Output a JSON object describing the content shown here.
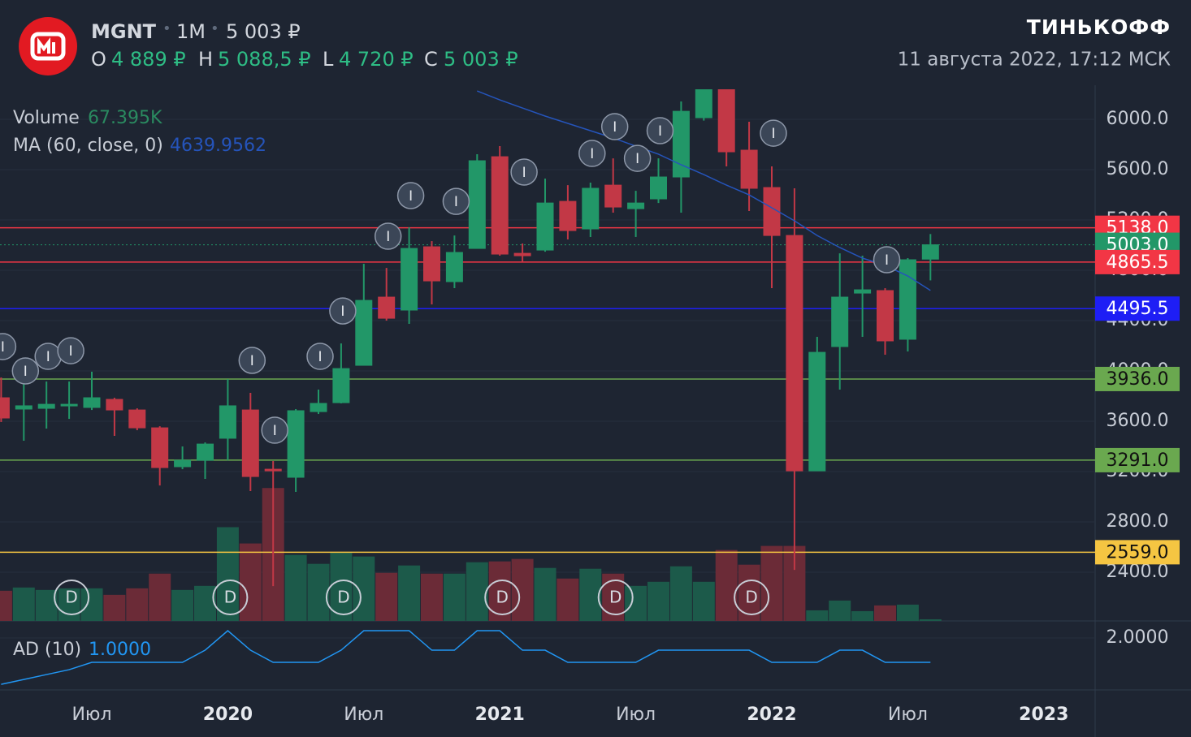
{
  "header": {
    "ticker": "MGNT",
    "interval": "1M",
    "price": "5 003 ₽",
    "ohlc": [
      {
        "key": "O",
        "value": "4 889 ₽"
      },
      {
        "key": "H",
        "value": "5 088,5 ₽"
      },
      {
        "key": "L",
        "value": "4 720 ₽"
      },
      {
        "key": "C",
        "value": "5 003 ₽"
      }
    ],
    "brand": "ТИНЬКОФФ",
    "datetime": "11 августа 2022, 17:12 МСК"
  },
  "chart_data": {
    "type": "candlestick",
    "categories": [
      null,
      null,
      null,
      null,
      "Июл",
      null,
      null,
      null,
      null,
      null,
      "2020",
      null,
      null,
      null,
      null,
      null,
      "Июл",
      null,
      null,
      null,
      null,
      null,
      "2021",
      null,
      null,
      null,
      null,
      null,
      "Июл",
      null,
      null,
      null,
      null,
      null,
      "2022",
      null,
      null,
      null,
      null,
      null,
      "Июл",
      null,
      null,
      null,
      null,
      null,
      "2023"
    ],
    "open": [
      3787,
      3697,
      3703,
      3723,
      3710,
      3774,
      3690,
      3548,
      3239,
      3290,
      3465,
      3690,
      3219,
      3155,
      3677,
      3748,
      4045,
      4587,
      4484,
      4987,
      4710,
      4974,
      5703,
      4935,
      4961,
      5348,
      5129,
      5477,
      5290,
      5368,
      5542,
      6013,
      6260,
      5755,
      5458,
      5077,
      3206,
      4194,
      4619,
      4639,
      4252,
      4889,
      null,
      null,
      null,
      null,
      null
    ],
    "high": [
      3948,
      3916,
      3916,
      3916,
      3994,
      3787,
      3703,
      3561,
      3400,
      3432,
      3935,
      3826,
      3284,
      3697,
      3852,
      4219,
      4852,
      4819,
      5142,
      5032,
      5077,
      5723,
      5787,
      5013,
      5529,
      5477,
      5497,
      5690,
      5432,
      5690,
      6142,
      6300,
      6300,
      5981,
      5626,
      5452,
      4271,
      4935,
      4916,
      4658,
      4897,
      5088.5,
      null,
      null,
      null,
      null,
      null
    ],
    "low": [
      3594,
      3445,
      3542,
      3619,
      3690,
      3484,
      3529,
      3090,
      3219,
      3142,
      3290,
      3045,
      2290,
      3039,
      3658,
      3742,
      4045,
      4400,
      4374,
      4529,
      4658,
      4974,
      4916,
      4871,
      4948,
      5045,
      5065,
      5258,
      5065,
      5335,
      5258,
      5990,
      5626,
      5271,
      4658,
      2419,
      3206,
      3852,
      4271,
      4129,
      4155,
      4720,
      null,
      null,
      null,
      null,
      null
    ],
    "close": [
      3626,
      3723,
      3735,
      3735,
      3787,
      3690,
      3548,
      3232,
      3290,
      3419,
      3723,
      3161,
      3206,
      3684,
      3742,
      4019,
      4561,
      4419,
      4974,
      4716,
      4942,
      5671,
      4929,
      4916,
      5335,
      5116,
      5452,
      5303,
      5335,
      5542,
      6064,
      6260,
      5742,
      5452,
      5077,
      3206,
      4148,
      4587,
      4645,
      4239,
      4884,
      5003,
      null,
      null,
      null,
      null,
      null
    ],
    "up_color": "#229768",
    "down_color": "#c23846",
    "ylim": [
      2013,
      6239
    ],
    "yticks": [
      {
        "value": 2400,
        "label": "2400.0"
      },
      {
        "value": 2800,
        "label": "2800.0"
      },
      {
        "value": 3200,
        "label": "3200.0"
      },
      {
        "value": 3600,
        "label": "3600.0"
      },
      {
        "value": 4000,
        "label": "4000.0"
      },
      {
        "value": 4400,
        "label": "4400.0"
      },
      {
        "value": 4800,
        "label": "4800.0"
      },
      {
        "value": 5200,
        "label": "5200.0"
      },
      {
        "value": 5600,
        "label": "5600.0"
      },
      {
        "value": 6000,
        "label": "6000.0"
      }
    ],
    "grid": true,
    "levels": [
      {
        "value": 5138,
        "label": "5138.0",
        "color": "#f23645",
        "text_color": "#ffffff",
        "style": "solid"
      },
      {
        "value": 5003,
        "label": "5003.0",
        "color": "#229768",
        "text_color": "#ffffff",
        "style": "dotted"
      },
      {
        "value": 4865.5,
        "label": "4865.5",
        "color": "#f23645",
        "text_color": "#ffffff",
        "style": "solid"
      },
      {
        "value": 4495.5,
        "label": "4495.5",
        "color": "#1e1ef5",
        "text_color": "#ffffff",
        "style": "solid"
      },
      {
        "value": 3936,
        "label": "3936.0",
        "color": "#6aa84f",
        "text_color": "#111111",
        "style": "solid"
      },
      {
        "value": 3291,
        "label": "3291.0",
        "color": "#6aa84f",
        "text_color": "#111111",
        "style": "solid"
      },
      {
        "value": 2559,
        "label": "2559.0",
        "color": "#f5c542",
        "text_color": "#111111",
        "style": "solid"
      }
    ],
    "volume": {
      "name": "Volume",
      "value_label": "67.395K",
      "up_color": "#1c5a4a",
      "down_color": "#6b2b37",
      "label_color": "#2a8a60",
      "values": [
        1246900,
        1381700,
        1280600,
        1348000,
        1348000,
        1078400,
        1348000,
        1954600,
        1280600,
        1449100,
        3875500,
        3201500,
        5493100,
        2729700,
        2359000,
        2830800,
        2662300,
        1988300,
        2291600,
        1954600,
        1954600,
        2426400,
        2460100,
        2561200,
        2190500,
        1752400,
        2156800,
        1954600,
        1449100,
        1617600,
        2257900,
        1617600,
        2931900,
        2325300,
        3100400,
        3100400,
        438100,
        842500,
        404400,
        640300,
        674000,
        67395,
        null,
        null,
        null,
        null,
        null
      ]
    },
    "ma": {
      "name": "MA (60, close, 0)",
      "color": "#2554bb",
      "values": [
        null,
        null,
        null,
        null,
        null,
        null,
        null,
        null,
        null,
        null,
        null,
        null,
        null,
        null,
        null,
        null,
        null,
        null,
        null,
        null,
        null,
        6226,
        6155,
        6090,
        6026,
        5968,
        5910,
        5852,
        5787,
        5723,
        5639,
        5561,
        5477,
        5400,
        5297,
        5194,
        5077,
        4981,
        4897,
        4839,
        4755,
        4639.9562,
        null,
        null,
        null,
        null,
        null
      ]
    },
    "ad": {
      "name": "AD (10)",
      "color": "#2196f3",
      "value_label": "1.0000",
      "ylim": [
        -0.13,
        2.7
      ],
      "yticks": [
        {
          "value": 2,
          "label": "2.0000"
        }
      ],
      "values": [
        0.1,
        0.3,
        0.5,
        0.7,
        1,
        1,
        1,
        1,
        1,
        1.5,
        2.3,
        1.5,
        1,
        1,
        1,
        1.5,
        2.3,
        2.3,
        2.3,
        1.5,
        1.5,
        2.3,
        2.3,
        1.5,
        1.5,
        1,
        1,
        1,
        1,
        1.5,
        1.5,
        1.5,
        1.5,
        1.5,
        1,
        1,
        1,
        1.5,
        1.5,
        1,
        1,
        1,
        null,
        null,
        null,
        null,
        null
      ]
    },
    "idea_labels": [
      "I",
      "I",
      "I",
      "I",
      null,
      null,
      null,
      null,
      null,
      null,
      null,
      "I",
      "I",
      null,
      "I",
      "I",
      null,
      "I",
      "I",
      null,
      "I",
      null,
      null,
      "I",
      null,
      null,
      "I",
      "I",
      "I",
      "I",
      null,
      null,
      null,
      null,
      "I",
      null,
      null,
      null,
      null,
      "I",
      null,
      null,
      null,
      null,
      null,
      null,
      null
    ],
    "idea_values": [
      4194,
      4000,
      4116,
      4161,
      null,
      null,
      null,
      null,
      null,
      null,
      null,
      4084,
      3529,
      null,
      4116,
      4477,
      null,
      5071,
      5394,
      null,
      5348,
      null,
      null,
      5581,
      null,
      null,
      5729,
      5942,
      5690,
      5910,
      null,
      null,
      null,
      null,
      5890,
      null,
      null,
      null,
      null,
      4884,
      null,
      null,
      null,
      null,
      null,
      null,
      null
    ],
    "dividend_labels": [
      null,
      null,
      null,
      "D",
      null,
      null,
      null,
      null,
      null,
      null,
      "D",
      null,
      null,
      null,
      null,
      "D",
      null,
      null,
      null,
      null,
      null,
      null,
      "D",
      null,
      null,
      null,
      null,
      "D",
      null,
      null,
      null,
      null,
      null,
      "D",
      null,
      null,
      null,
      null,
      null,
      null,
      null,
      null,
      null,
      null,
      null,
      null,
      null
    ]
  }
}
